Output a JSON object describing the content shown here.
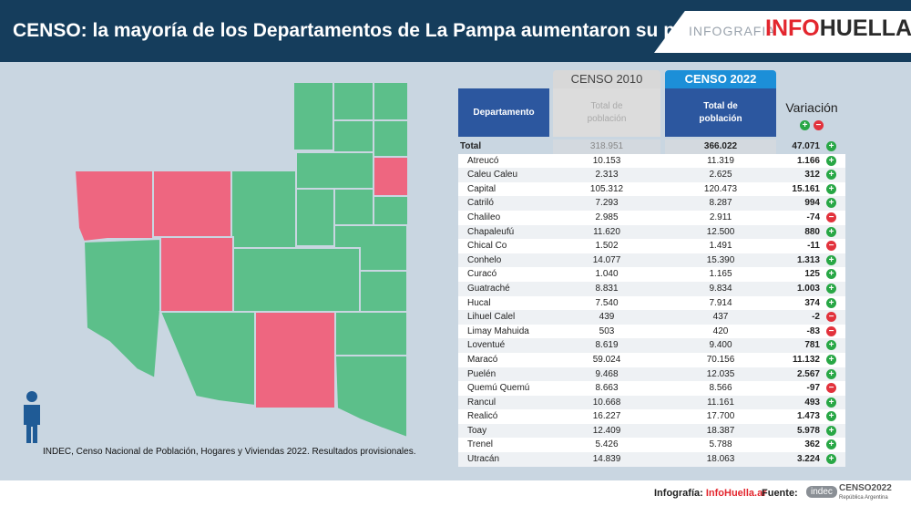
{
  "header": {
    "title": "CENSO: la mayoría de los Departamentos de La Pampa aumentaron su población",
    "logo_prefix": "INFOGRAFIA",
    "logo_brand_a": "INFO",
    "logo_brand_b": "HUELLA",
    "logo_brand_c": "ar"
  },
  "colors": {
    "increase": "#5cbf8a",
    "decrease": "#ee6680",
    "header_bg": "#153d5c"
  },
  "map": {
    "source": "INDEC, Censo Nacional de Población, Hogares y Viviendas 2022. Resultados provisionales."
  },
  "table": {
    "col_censo2010": "CENSO 2010",
    "col_censo2022": "CENSO 2022",
    "hdr_departamento": "Departamento",
    "hdr_total2010": "Total de población",
    "hdr_total2022": "Total de población",
    "hdr_variacion": "Variación",
    "total": {
      "label": "Total",
      "c2010": "318.951",
      "c2022": "366.022",
      "var": "47.071"
    },
    "rows": [
      {
        "dept": "Atreucó",
        "c2010": "10.153",
        "c2022": "11.319",
        "var": "1.166",
        "sign": "up"
      },
      {
        "dept": "Caleu Caleu",
        "c2010": "2.313",
        "c2022": "2.625",
        "var": "312",
        "sign": "up"
      },
      {
        "dept": "Capital",
        "c2010": "105.312",
        "c2022": "120.473",
        "var": "15.161",
        "sign": "up"
      },
      {
        "dept": "Catriló",
        "c2010": "7.293",
        "c2022": "8.287",
        "var": "994",
        "sign": "up"
      },
      {
        "dept": "Chalileo",
        "c2010": "2.985",
        "c2022": "2.911",
        "var": "-74",
        "sign": "down"
      },
      {
        "dept": "Chapaleufú",
        "c2010": "11.620",
        "c2022": "12.500",
        "var": "880",
        "sign": "up"
      },
      {
        "dept": "Chical Co",
        "c2010": "1.502",
        "c2022": "1.491",
        "var": "-11",
        "sign": "down"
      },
      {
        "dept": "Conhelo",
        "c2010": "14.077",
        "c2022": "15.390",
        "var": "1.313",
        "sign": "up"
      },
      {
        "dept": "Curacó",
        "c2010": "1.040",
        "c2022": "1.165",
        "var": "125",
        "sign": "up"
      },
      {
        "dept": "Guatraché",
        "c2010": "8.831",
        "c2022": "9.834",
        "var": "1.003",
        "sign": "up"
      },
      {
        "dept": "Hucal",
        "c2010": "7.540",
        "c2022": "7.914",
        "var": "374",
        "sign": "up"
      },
      {
        "dept": "Lihuel Calel",
        "c2010": "439",
        "c2022": "437",
        "var": "-2",
        "sign": "down"
      },
      {
        "dept": "Limay Mahuida",
        "c2010": "503",
        "c2022": "420",
        "var": "-83",
        "sign": "down"
      },
      {
        "dept": "Loventué",
        "c2010": "8.619",
        "c2022": "9.400",
        "var": "781",
        "sign": "up"
      },
      {
        "dept": "Maracó",
        "c2010": "59.024",
        "c2022": "70.156",
        "var": "11.132",
        "sign": "up"
      },
      {
        "dept": "Puelén",
        "c2010": "9.468",
        "c2022": "12.035",
        "var": "2.567",
        "sign": "up"
      },
      {
        "dept": "Quemú Quemú",
        "c2010": "8.663",
        "c2022": "8.566",
        "var": "-97",
        "sign": "down"
      },
      {
        "dept": "Rancul",
        "c2010": "10.668",
        "c2022": "11.161",
        "var": "493",
        "sign": "up"
      },
      {
        "dept": "Realicó",
        "c2010": "16.227",
        "c2022": "17.700",
        "var": "1.473",
        "sign": "up"
      },
      {
        "dept": "Toay",
        "c2010": "12.409",
        "c2022": "18.387",
        "var": "5.978",
        "sign": "up"
      },
      {
        "dept": "Trenel",
        "c2010": "5.426",
        "c2022": "5.788",
        "var": "362",
        "sign": "up"
      },
      {
        "dept": "Utracán",
        "c2010": "14.839",
        "c2022": "18.063",
        "var": "3.224",
        "sign": "up"
      }
    ]
  },
  "footer": {
    "infografia_label": "Infografía:",
    "infografia_value": "InfoHuella.ar",
    "fuente_label": "Fuente:",
    "indec_logo": "indec",
    "censo_logo": "CENSO2022",
    "censo_logo_sub": "República Argentina"
  }
}
